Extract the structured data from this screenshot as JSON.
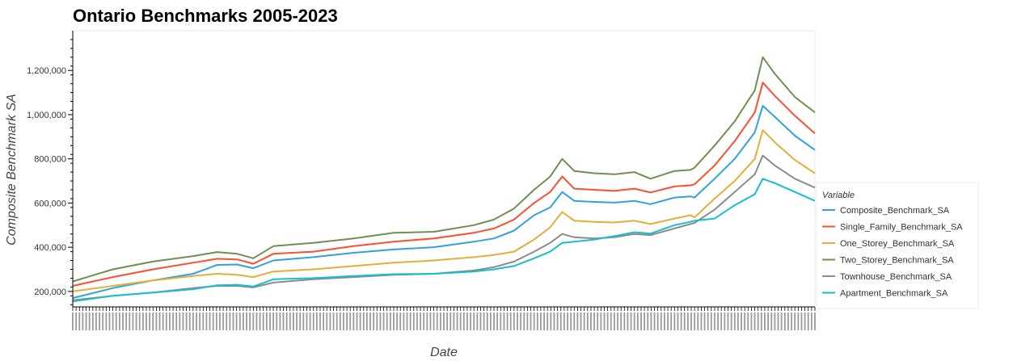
{
  "chart_data": {
    "type": "line",
    "title": "Ontario Benchmarks 2005-2023",
    "xlabel": "Date",
    "ylabel": "Composite Benchmark SA",
    "yticks": [
      "200,000",
      "400,000",
      "600,000",
      "800,000",
      "1,000,000",
      "1,200,000"
    ],
    "ylim": [
      130000,
      1380000
    ],
    "xlim": [
      2005.0,
      2023.5
    ],
    "legend": {
      "title": "Variable",
      "position": "right"
    },
    "x": [
      2005.0,
      2006.0,
      2007.0,
      2008.0,
      2008.6,
      2009.1,
      2009.5,
      2010.0,
      2011.0,
      2012.0,
      2013.0,
      2014.0,
      2015.0,
      2015.5,
      2016.0,
      2016.5,
      2016.9,
      2017.2,
      2017.5,
      2018.0,
      2018.5,
      2019.0,
      2019.4,
      2020.0,
      2020.4,
      2020.5,
      2021.0,
      2021.5,
      2022.0,
      2022.2,
      2022.5,
      2023.0,
      2023.5
    ],
    "series": [
      {
        "name": "Composite_Benchmark_SA",
        "color": "#30a2da",
        "values": [
          170000,
          215000,
          250000,
          280000,
          320000,
          322000,
          305000,
          340000,
          355000,
          375000,
          390000,
          400000,
          425000,
          440000,
          475000,
          545000,
          580000,
          650000,
          610000,
          605000,
          602000,
          610000,
          595000,
          625000,
          630000,
          625000,
          710000,
          800000,
          920000,
          1040000,
          990000,
          905000,
          840000
        ]
      },
      {
        "name": "Single_Family_Benchmark_SA",
        "color": "#fc4f30",
        "values": [
          225000,
          265000,
          300000,
          330000,
          348000,
          345000,
          325000,
          370000,
          380000,
          405000,
          425000,
          440000,
          465000,
          485000,
          525000,
          600000,
          650000,
          720000,
          665000,
          660000,
          655000,
          665000,
          648000,
          675000,
          680000,
          685000,
          770000,
          880000,
          1010000,
          1145000,
          1085000,
          995000,
          915000
        ]
      },
      {
        "name": "One_Storey_Benchmark_SA",
        "color": "#e5ae38",
        "values": [
          200000,
          225000,
          250000,
          270000,
          280000,
          275000,
          265000,
          290000,
          300000,
          315000,
          330000,
          340000,
          355000,
          365000,
          380000,
          435000,
          490000,
          560000,
          520000,
          515000,
          512000,
          520000,
          505000,
          530000,
          545000,
          535000,
          620000,
          700000,
          800000,
          930000,
          875000,
          795000,
          735000
        ]
      },
      {
        "name": "Two_Storey_Benchmark_SA",
        "color": "#6d904f",
        "values": [
          245000,
          300000,
          335000,
          360000,
          378000,
          370000,
          350000,
          405000,
          420000,
          440000,
          465000,
          470000,
          500000,
          525000,
          575000,
          660000,
          720000,
          800000,
          745000,
          735000,
          730000,
          740000,
          710000,
          745000,
          750000,
          760000,
          860000,
          970000,
          1110000,
          1260000,
          1185000,
          1080000,
          1010000
        ]
      },
      {
        "name": "Townhouse_Benchmark_SA",
        "color": "#8b8b8b",
        "values": [
          160000,
          180000,
          195000,
          215000,
          225000,
          225000,
          218000,
          240000,
          255000,
          265000,
          275000,
          280000,
          295000,
          310000,
          335000,
          380000,
          420000,
          460000,
          445000,
          440000,
          445000,
          460000,
          455000,
          485000,
          505000,
          510000,
          570000,
          650000,
          730000,
          815000,
          770000,
          710000,
          670000
        ]
      },
      {
        "name": "Apartment_Benchmark_SA",
        "color": "#17becf",
        "values": [
          155000,
          180000,
          195000,
          210000,
          228000,
          230000,
          222000,
          255000,
          260000,
          270000,
          278000,
          280000,
          290000,
          300000,
          315000,
          350000,
          380000,
          420000,
          425000,
          435000,
          450000,
          468000,
          462000,
          500000,
          515000,
          520000,
          530000,
          590000,
          640000,
          710000,
          690000,
          650000,
          610000
        ]
      }
    ]
  }
}
